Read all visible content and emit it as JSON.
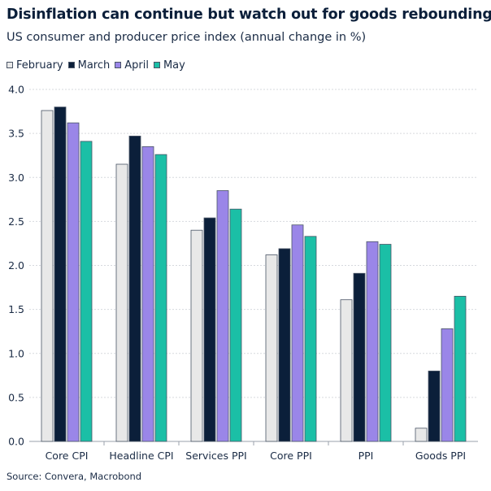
{
  "chart_data": {
    "type": "bar",
    "title": "Disinflation can continue but watch out for goods rebounding",
    "subtitle": "US consumer and producer price index (annual change in %)",
    "categories": [
      "Core CPI",
      "Headline CPI",
      "Services PPI",
      "Core PPI",
      "PPI",
      "Goods PPI"
    ],
    "series": [
      {
        "name": "February",
        "color": "#e8e8e8",
        "values": [
          3.76,
          3.15,
          2.4,
          2.12,
          1.61,
          0.15
        ]
      },
      {
        "name": "March",
        "color": "#0b1f3a",
        "values": [
          3.8,
          3.47,
          2.54,
          2.19,
          1.91,
          0.8
        ]
      },
      {
        "name": "April",
        "color": "#9a86e8",
        "values": [
          3.62,
          3.35,
          2.85,
          2.46,
          2.27,
          1.28
        ]
      },
      {
        "name": "May",
        "color": "#1bbfa6",
        "values": [
          3.41,
          3.26,
          2.64,
          2.33,
          2.24,
          1.65
        ]
      }
    ],
    "ylim": [
      0,
      4.0
    ],
    "yticks": [
      "0.0",
      "0.5",
      "1.0",
      "1.5",
      "2.0",
      "2.5",
      "3.0",
      "3.5",
      "4.0"
    ],
    "xlabel": "",
    "ylabel": "",
    "grid": true,
    "legend_position": "top-left"
  },
  "source": "Source: Convera, Macrobond"
}
